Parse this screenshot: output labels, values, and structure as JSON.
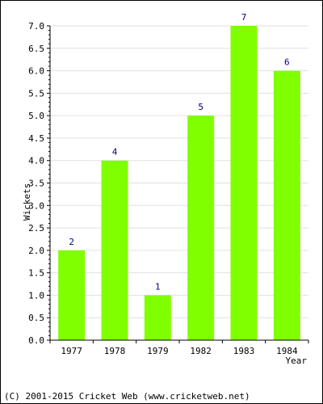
{
  "chart_data": {
    "type": "bar",
    "categories": [
      "1977",
      "1978",
      "1979",
      "1982",
      "1983",
      "1984"
    ],
    "values": [
      2,
      4,
      1,
      5,
      7,
      6
    ],
    "data_labels": [
      "2",
      "4",
      "1",
      "5",
      "7",
      "6"
    ],
    "xlabel": "Year",
    "ylabel": "Wickets",
    "ylim": [
      0,
      7
    ],
    "yticks": [
      "0.0",
      "0.5",
      "1.0",
      "1.5",
      "2.0",
      "2.5",
      "3.0",
      "3.5",
      "4.0",
      "4.5",
      "5.0",
      "5.5",
      "6.0",
      "6.5",
      "7.0"
    ],
    "grid": true,
    "bar_color": "#80ff00",
    "grid_color": "#e0e0e0",
    "label_color": "#000080"
  },
  "footer": {
    "copyright": "(C) 2001-2015 Cricket Web (www.cricketweb.net)"
  }
}
